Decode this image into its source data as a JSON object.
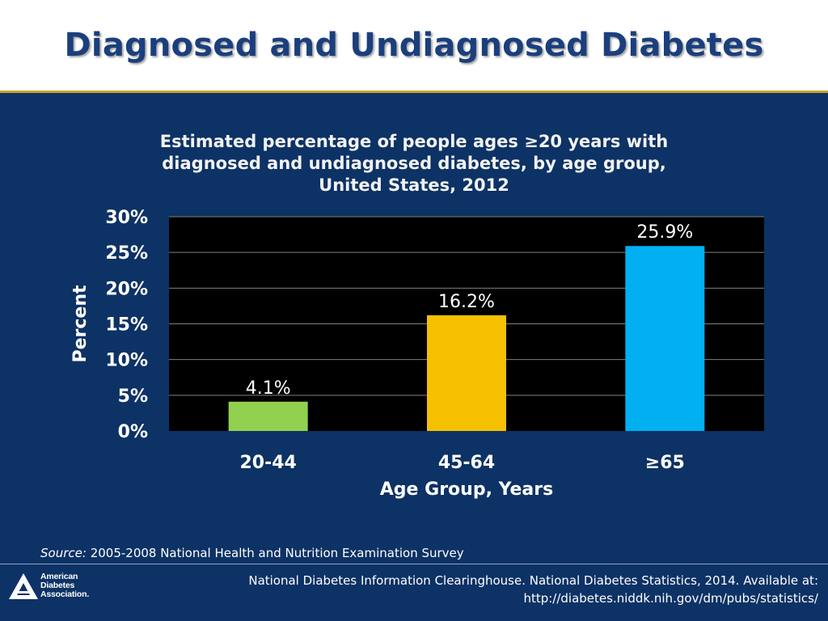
{
  "slide": {
    "title": "Diagnosed and Undiagnosed Diabetes",
    "source_label": "Source:",
    "source_text": "2005-2008 National Health and Nutrition Examination Survey",
    "citation_line1": "National Diabetes Information Clearinghouse. National Diabetes Statistics, 2014. Available at:",
    "citation_line2": "http://diabetes.niddk.nih.gov/dm/pubs/statistics/",
    "logo_line1": "American",
    "logo_line2": "Diabetes",
    "logo_line3": "Association."
  },
  "chart_data": {
    "type": "bar",
    "title_lines": [
      "Estimated percentage of people ages ≥20 years with",
      "diagnosed and undiagnosed diabetes, by age group,",
      "United States, 2012"
    ],
    "categories": [
      "20-44",
      "45-64",
      "≥65"
    ],
    "values": [
      4.1,
      16.2,
      25.9
    ],
    "value_labels": [
      "4.1%",
      "16.2%",
      "25.9%"
    ],
    "bar_colors": [
      "#92d050",
      "#f5c000",
      "#00b0f0"
    ],
    "xlabel": "Age Group, Years",
    "ylabel": "Percent",
    "ylim": [
      0,
      30
    ],
    "yticks": [
      0,
      5,
      10,
      15,
      20,
      25,
      30
    ],
    "ytick_labels": [
      "0%",
      "5%",
      "10%",
      "15%",
      "20%",
      "25%",
      "30%"
    ],
    "grid": true,
    "legend": "none"
  },
  "colors": {
    "background": "#0d3265",
    "title_text": "#1b3f7d",
    "rule": "#c9a227",
    "plot_area": "#000000",
    "gridline": "#7f7f7f"
  }
}
